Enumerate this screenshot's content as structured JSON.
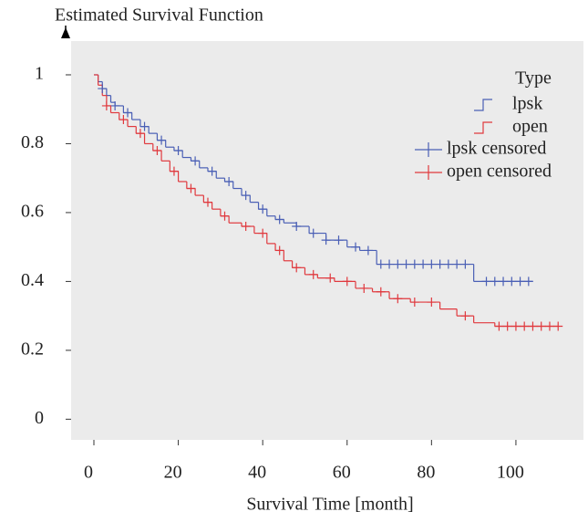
{
  "chart_data": {
    "type": "step",
    "y_axis_label": "Estimated Survival Function",
    "x_axis_label": "Survival Time [month]",
    "legend_title": "Type",
    "xlim": [
      -5.4,
      116
    ],
    "ylim": [
      -0.06,
      1.098
    ],
    "xticks": [
      0,
      20,
      40,
      60,
      80,
      100
    ],
    "yticks": [
      0,
      0.2,
      0.4,
      0.6,
      0.8,
      1
    ],
    "background": "#ebebeb",
    "series": [
      {
        "name": "lpsk",
        "color": "#4a5fb5",
        "x": [
          0,
          1,
          2,
          3,
          4,
          5,
          7,
          9,
          11,
          13,
          15,
          17,
          19,
          21,
          23,
          25,
          27,
          29,
          31,
          33,
          35,
          37,
          39,
          41,
          43,
          45,
          48,
          51,
          55,
          60,
          63,
          67,
          75,
          90,
          104
        ],
        "values": [
          1,
          0.98,
          0.96,
          0.94,
          0.92,
          0.91,
          0.89,
          0.87,
          0.85,
          0.83,
          0.81,
          0.79,
          0.78,
          0.76,
          0.75,
          0.73,
          0.72,
          0.7,
          0.69,
          0.67,
          0.65,
          0.63,
          0.61,
          0.59,
          0.58,
          0.57,
          0.56,
          0.54,
          0.52,
          0.5,
          0.49,
          0.45,
          0.45,
          0.4,
          0.4
        ]
      },
      {
        "name": "open",
        "color": "#e0393e",
        "x": [
          0,
          1,
          2,
          3,
          4,
          6,
          8,
          10,
          12,
          14,
          16,
          18,
          20,
          22,
          24,
          26,
          28,
          30,
          32,
          35,
          38,
          41,
          43,
          45,
          47,
          50,
          53,
          57,
          62,
          66,
          70,
          75,
          82,
          86,
          90,
          95,
          110
        ],
        "values": [
          1,
          0.97,
          0.94,
          0.91,
          0.89,
          0.87,
          0.85,
          0.83,
          0.8,
          0.78,
          0.75,
          0.72,
          0.69,
          0.67,
          0.65,
          0.63,
          0.61,
          0.59,
          0.57,
          0.56,
          0.54,
          0.51,
          0.49,
          0.46,
          0.44,
          0.42,
          0.41,
          0.4,
          0.38,
          0.37,
          0.35,
          0.34,
          0.32,
          0.3,
          0.28,
          0.27,
          0.27
        ]
      }
    ],
    "censored": [
      {
        "name": "lpsk censored",
        "color": "#4a5fb5",
        "x": [
          2,
          5,
          8,
          12,
          16,
          20,
          24,
          28,
          32,
          36,
          40,
          44,
          48,
          52,
          55,
          58,
          62,
          65,
          68,
          70,
          72,
          74,
          76,
          78,
          80,
          82,
          84,
          86,
          88,
          93,
          95,
          97,
          99,
          101,
          103
        ],
        "values": [
          0.96,
          0.91,
          0.89,
          0.85,
          0.81,
          0.78,
          0.75,
          0.72,
          0.69,
          0.65,
          0.61,
          0.58,
          0.56,
          0.54,
          0.52,
          0.52,
          0.5,
          0.49,
          0.45,
          0.45,
          0.45,
          0.45,
          0.45,
          0.45,
          0.45,
          0.45,
          0.45,
          0.45,
          0.45,
          0.4,
          0.4,
          0.4,
          0.4,
          0.4,
          0.4
        ]
      },
      {
        "name": "open censored",
        "color": "#e0393e",
        "x": [
          3,
          7,
          11,
          15,
          19,
          23,
          27,
          31,
          36,
          40,
          44,
          48,
          52,
          56,
          60,
          64,
          68,
          72,
          76,
          80,
          88,
          96,
          98,
          100,
          102,
          104,
          106,
          108,
          110
        ],
        "values": [
          0.91,
          0.87,
          0.83,
          0.78,
          0.72,
          0.67,
          0.63,
          0.59,
          0.56,
          0.54,
          0.49,
          0.44,
          0.42,
          0.41,
          0.4,
          0.38,
          0.37,
          0.35,
          0.34,
          0.34,
          0.3,
          0.27,
          0.27,
          0.27,
          0.27,
          0.27,
          0.27,
          0.27,
          0.27
        ]
      }
    ]
  }
}
